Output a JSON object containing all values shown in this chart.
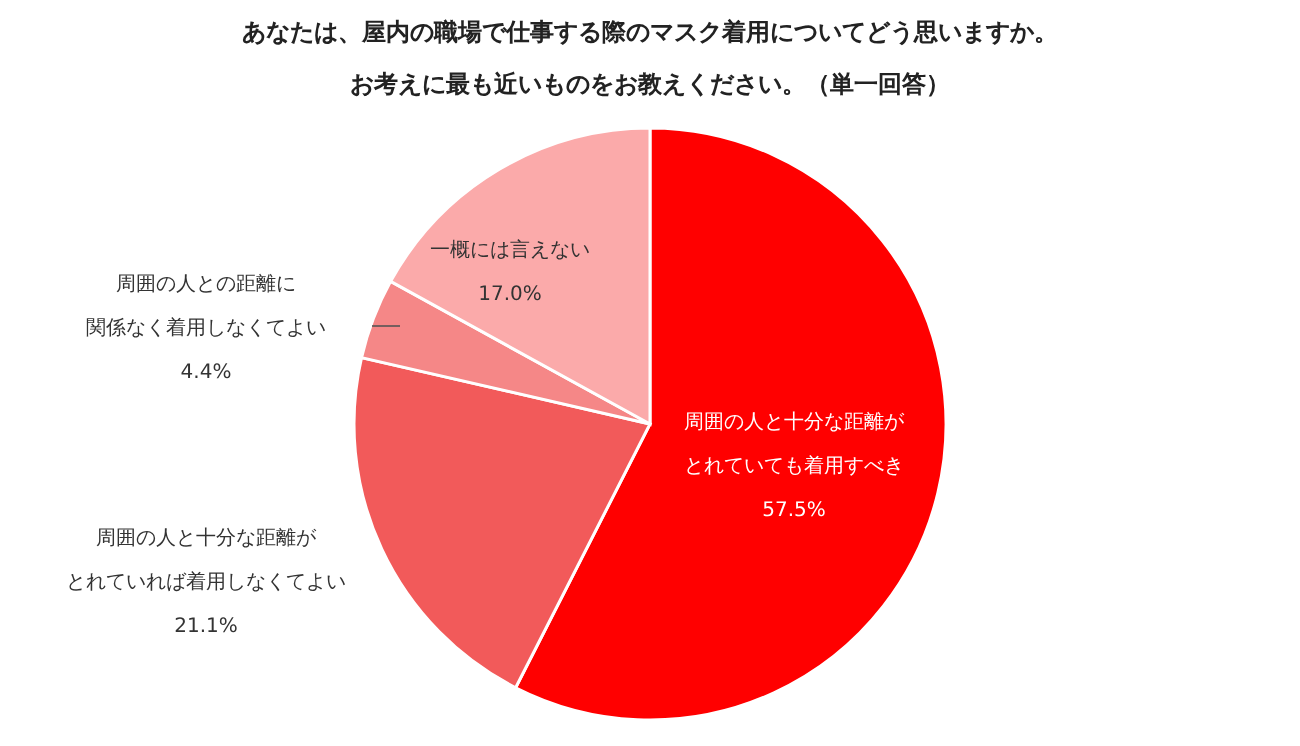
{
  "chart_data": {
    "type": "pie",
    "title": "あなたは、屋内の職場で仕事する際のマスク着用についてどう思いますか。",
    "subtitle": "お考えに最も近いものをお教えください。（単一回答）",
    "categories": [
      "周囲の人と十分な距離がとれていても着用すべき",
      "周囲の人と十分な距離がとれていれば着用しなくてよい",
      "周囲の人との距離に関係なく着用しなくてよい",
      "一概には言えない"
    ],
    "values": [
      57.5,
      21.1,
      4.4,
      17.0
    ],
    "value_labels": [
      "57.5%",
      "21.1%",
      "4.4%",
      "17.0%"
    ],
    "colors": [
      "#ff0000",
      "#f25a5a",
      "#f58787",
      "#fbaaaa"
    ]
  }
}
